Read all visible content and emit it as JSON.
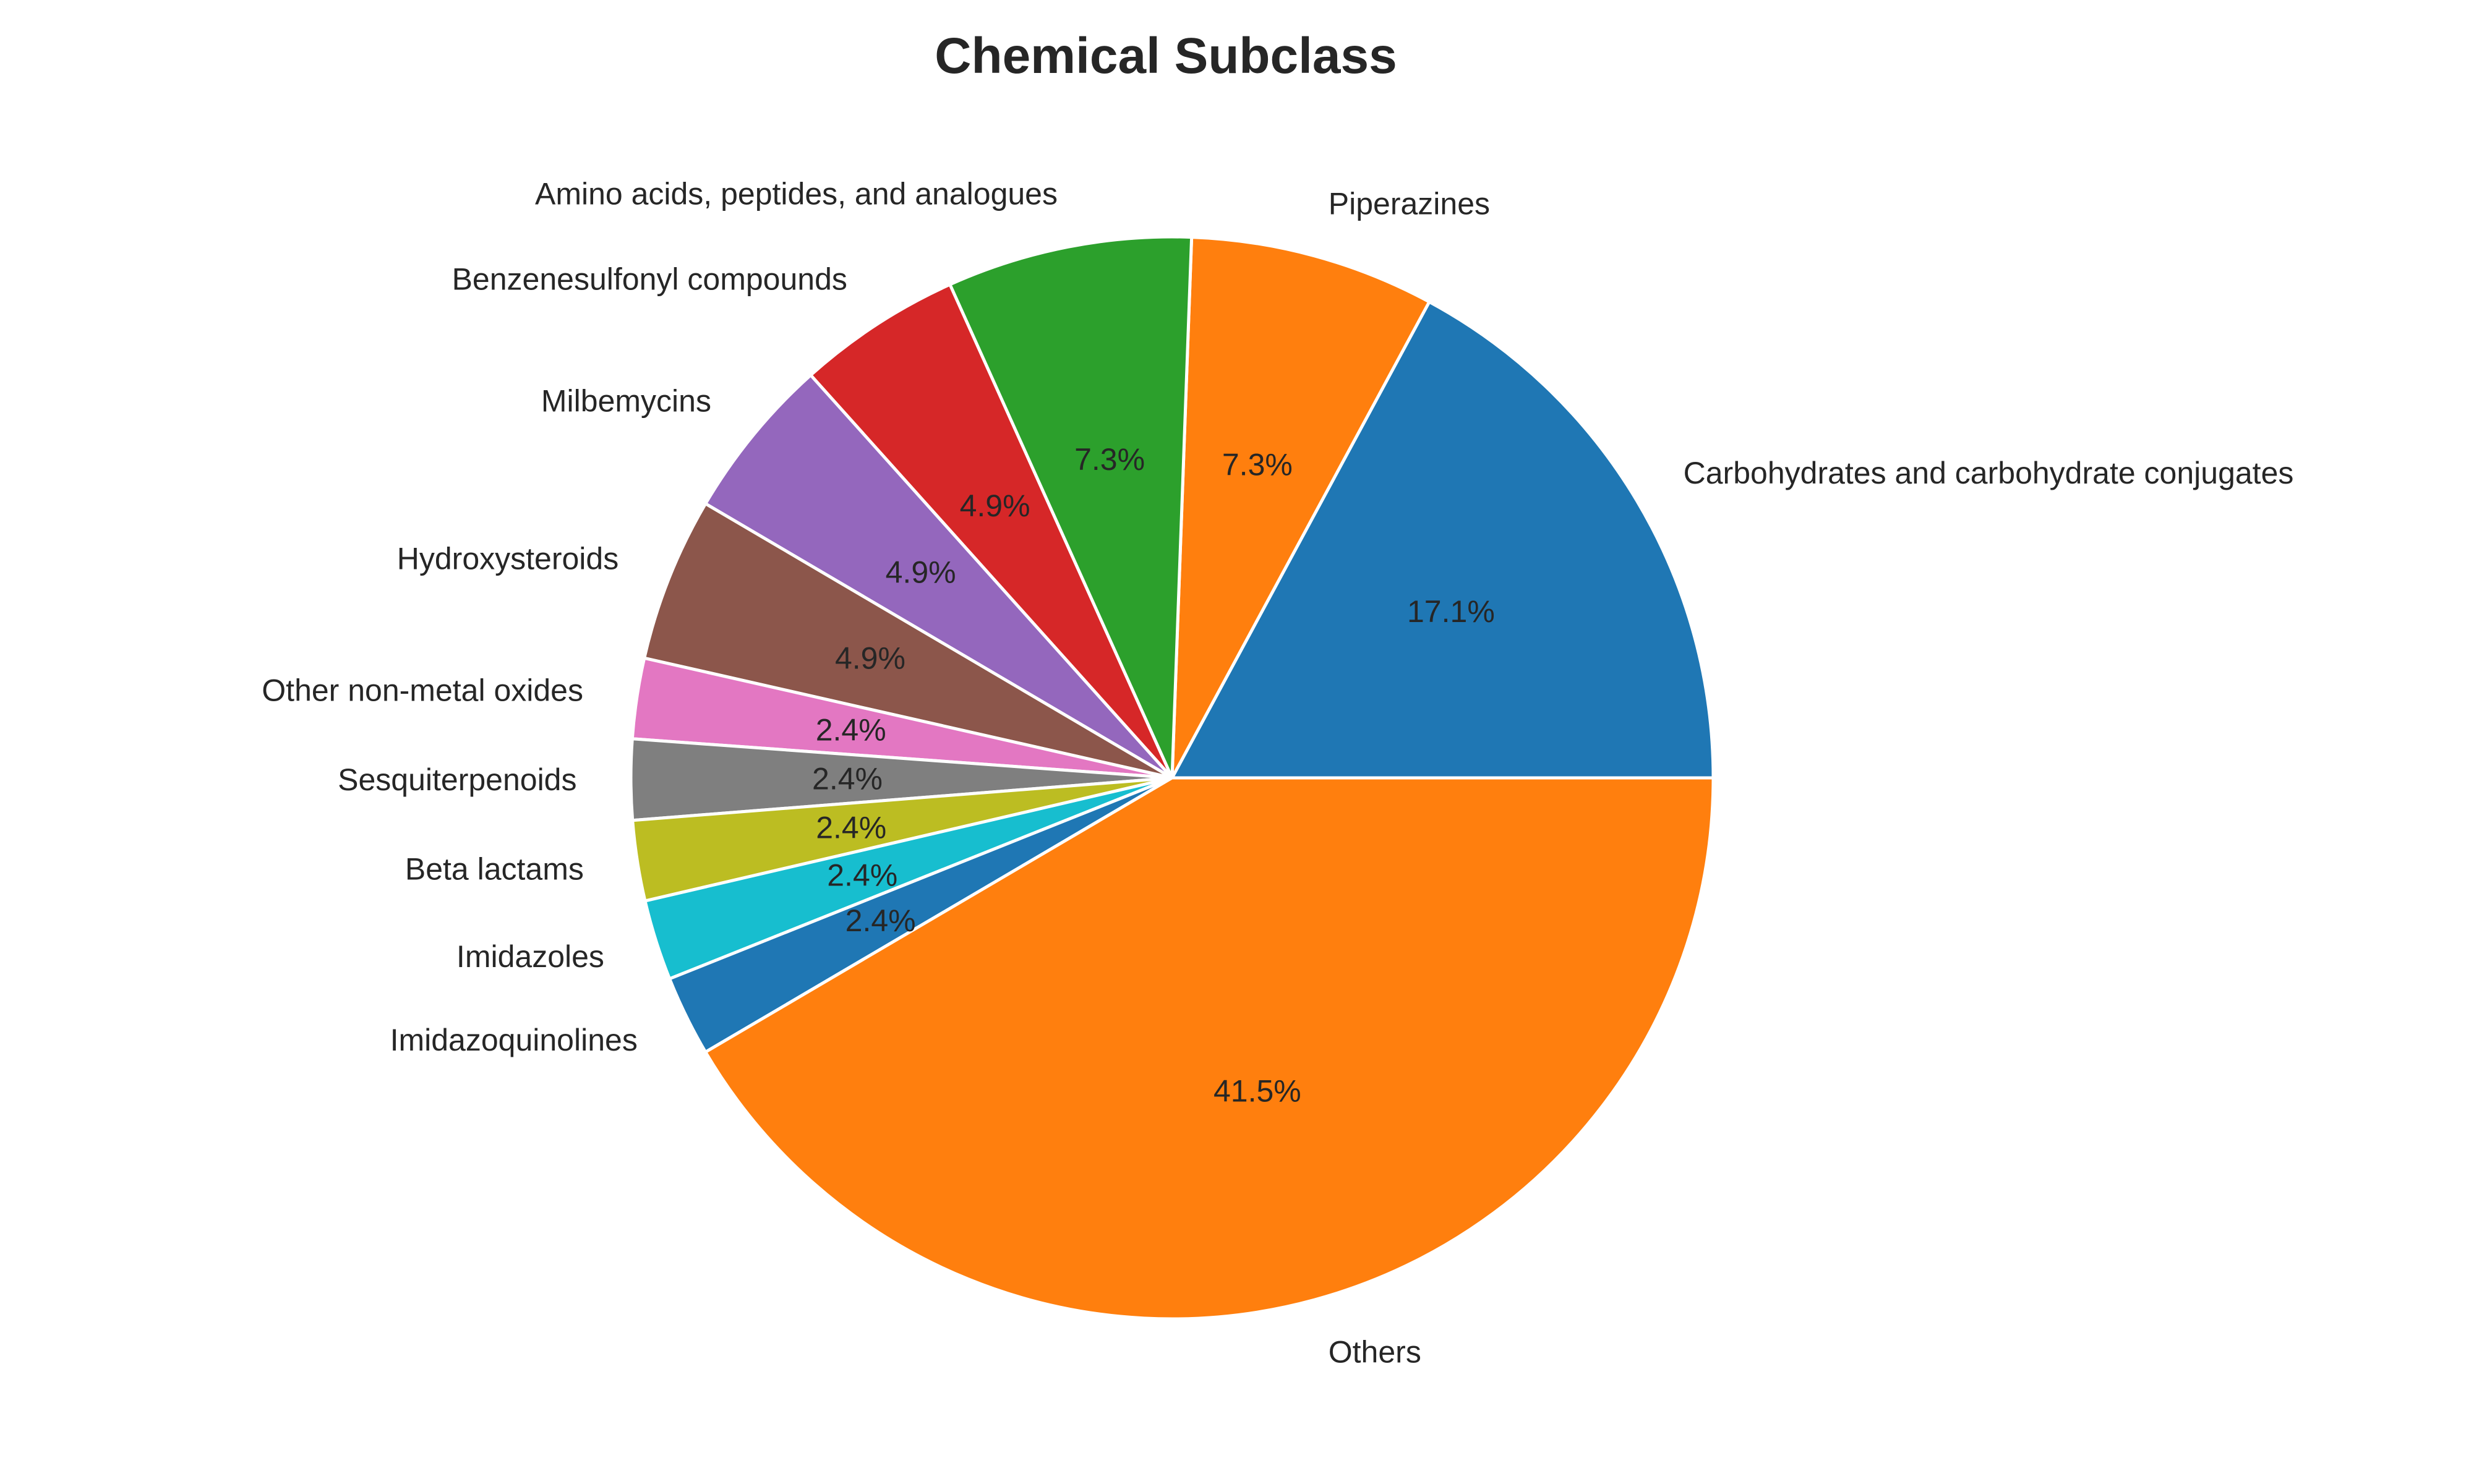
{
  "chart_data": {
    "type": "pie",
    "title": "Chemical Subclass",
    "start_angle_deg": 0,
    "direction": "counterclockwise",
    "slices": [
      {
        "label": "Carbohydrates and carbohydrate conjugates",
        "value": 17.1,
        "pct_label": "17.1%",
        "color": "#1f77b4"
      },
      {
        "label": "Piperazines",
        "value": 7.3,
        "pct_label": "7.3%",
        "color": "#ff7f0e"
      },
      {
        "label": "Amino acids, peptides, and analogues",
        "value": 7.3,
        "pct_label": "7.3%",
        "color": "#2ca02c"
      },
      {
        "label": "Benzenesulfonyl compounds",
        "value": 4.9,
        "pct_label": "4.9%",
        "color": "#d62728"
      },
      {
        "label": "Milbemycins",
        "value": 4.9,
        "pct_label": "4.9%",
        "color": "#9467bd"
      },
      {
        "label": "Hydroxysteroids",
        "value": 4.9,
        "pct_label": "4.9%",
        "color": "#8c564b"
      },
      {
        "label": "Other non-metal oxides",
        "value": 2.4,
        "pct_label": "2.4%",
        "color": "#e377c2"
      },
      {
        "label": "Sesquiterpenoids",
        "value": 2.4,
        "pct_label": "2.4%",
        "color": "#7f7f7f"
      },
      {
        "label": "Beta lactams",
        "value": 2.4,
        "pct_label": "2.4%",
        "color": "#bcbd22"
      },
      {
        "label": "Imidazoles",
        "value": 2.4,
        "pct_label": "2.4%",
        "color": "#17becf"
      },
      {
        "label": "Imidazoquinolines",
        "value": 2.4,
        "pct_label": "2.4%",
        "color": "#1f77b4"
      },
      {
        "label": "Others",
        "value": 41.5,
        "pct_label": "41.5%",
        "color": "#ff7f0e"
      }
    ]
  }
}
